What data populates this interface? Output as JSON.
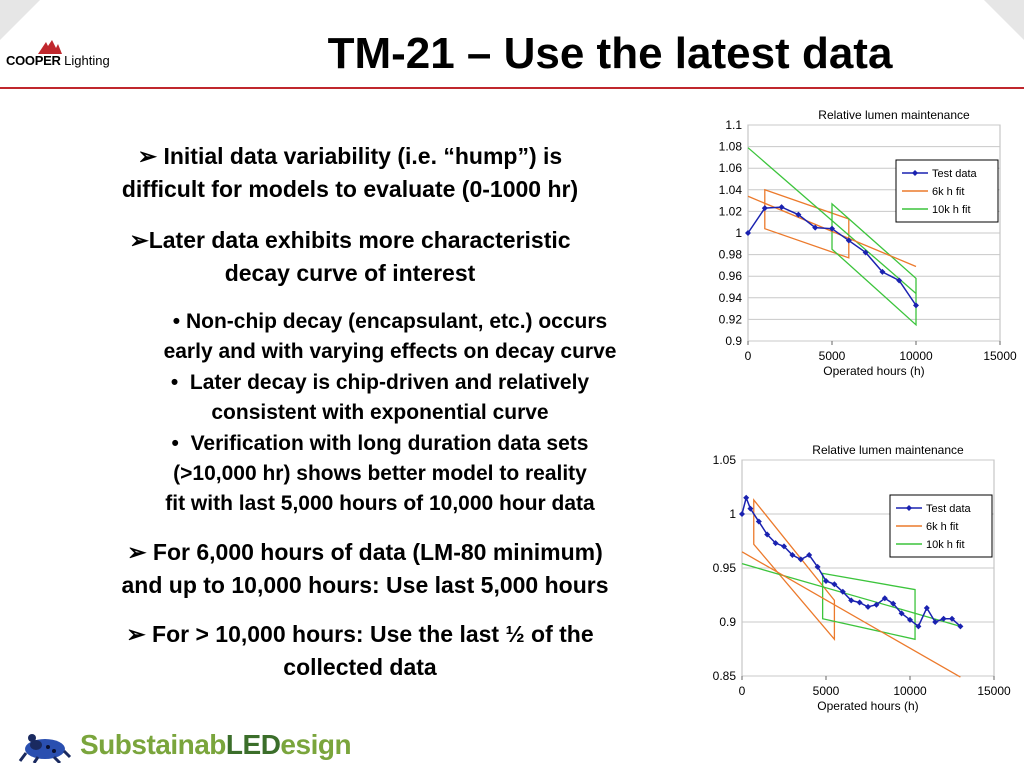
{
  "header": {
    "logo_brand": "COOPER",
    "logo_product": "Lighting",
    "title": "TM-21 – Use the latest data"
  },
  "bullets": [
    {
      "marker": "➢",
      "lines": [
        "Initial data variability (i.e. “hump”) is",
        "difficult for models to evaluate (0-1000 hr)"
      ]
    },
    {
      "marker": "➢",
      "lines": [
        "Later data exhibits more characteristic",
        "decay curve of interest"
      ]
    },
    {
      "marker": "•",
      "lines": [
        "Non-chip decay (encapsulant, etc.) occurs",
        "early and with varying effects on decay curve"
      ]
    },
    {
      "marker": "•",
      "lines": [
        "Later decay is chip-driven and relatively",
        "consistent with exponential curve"
      ]
    },
    {
      "marker": "•",
      "lines": [
        "Verification with long duration data sets",
        "(>10,000 hr) shows better model to reality",
        "fit with last 5,000 hours of 10,000 hour data"
      ]
    },
    {
      "marker": "➢",
      "lines": [
        "For 6,000 hours of data (LM-80 minimum)",
        "and up to 10,000 hours: Use last 5,000 hours"
      ]
    },
    {
      "marker": "➢",
      "lines": [
        "For > 10,000 hours: Use the last ½ of the",
        "collected data"
      ]
    }
  ],
  "footer": {
    "brand_a": "Substainab",
    "brand_b": "LED",
    "brand_c": "esign"
  },
  "colors": {
    "test_data": "#1a22b0",
    "fit_6k": "#ec7a2c",
    "fit_10k": "#3cc43c",
    "accent_rule": "#c0272d",
    "brand_green": "#7aa53c"
  },
  "chart_data": [
    {
      "type": "line",
      "title": "Relative lumen maintenance",
      "xlabel": "Operated hours (h)",
      "ylabel": "",
      "xlim": [
        0,
        15000
      ],
      "ylim": [
        0.9,
        1.1
      ],
      "xticks": [
        "0",
        "5000",
        "10000",
        "15000"
      ],
      "yticks": [
        "0.9",
        "0.92",
        "0.94",
        "0.96",
        "0.98",
        "1",
        "1.02",
        "1.04",
        "1.06",
        "1.08",
        "1.1"
      ],
      "legend": "top-right",
      "series": [
        {
          "name": "Test data",
          "x": [
            0,
            1000,
            2000,
            3000,
            4000,
            5000,
            6000,
            7000,
            8000,
            9000,
            10000
          ],
          "y": [
            1.0,
            1.023,
            1.024,
            1.017,
            1.005,
            1.004,
            0.993,
            0.982,
            0.964,
            0.956,
            0.933
          ]
        },
        {
          "name": "6k h fit",
          "x": [
            0,
            10000
          ],
          "y": [
            1.034,
            0.969
          ]
        },
        {
          "name": "10k h fit",
          "x": [
            0,
            10000
          ],
          "y": [
            1.079,
            0.944
          ]
        }
      ],
      "fit_windows": [
        {
          "name": "6k h fit",
          "x": [
            1000,
            6000
          ],
          "y_top": [
            1.04,
            1.013
          ],
          "y_bot": [
            1.004,
            0.977
          ]
        },
        {
          "name": "10k h fit",
          "x": [
            5000,
            10000
          ],
          "y_top": [
            1.027,
            0.958
          ],
          "y_bot": [
            0.985,
            0.915
          ]
        }
      ]
    },
    {
      "type": "line",
      "title": "Relative lumen maintenance",
      "xlabel": "Operated hours (h)",
      "ylabel": "",
      "xlim": [
        0,
        15000
      ],
      "ylim": [
        0.85,
        1.05
      ],
      "xticks": [
        "0",
        "5000",
        "10000",
        "15000"
      ],
      "yticks": [
        "0.85",
        "0.9",
        "0.95",
        "1",
        "1.05"
      ],
      "legend": "top-right",
      "series": [
        {
          "name": "Test data",
          "x": [
            0,
            250,
            500,
            1000,
            1500,
            2000,
            2500,
            3000,
            3500,
            4000,
            4500,
            5000,
            5500,
            6000,
            6500,
            7000,
            7500,
            8000,
            8500,
            9000,
            9500,
            10000,
            10500,
            11000,
            11500,
            12000,
            12500,
            13000
          ],
          "y": [
            1.0,
            1.015,
            1.005,
            0.993,
            0.981,
            0.973,
            0.97,
            0.962,
            0.958,
            0.962,
            0.951,
            0.938,
            0.935,
            0.928,
            0.92,
            0.918,
            0.914,
            0.916,
            0.922,
            0.917,
            0.908,
            0.902,
            0.896,
            0.913,
            0.9,
            0.903,
            0.903,
            0.896
          ]
        },
        {
          "name": "6k h fit",
          "x": [
            0,
            13000
          ],
          "y": [
            0.965,
            0.849
          ]
        },
        {
          "name": "10k h fit",
          "x": [
            0,
            13000
          ],
          "y": [
            0.954,
            0.896
          ]
        }
      ],
      "fit_windows": [
        {
          "name": "6k h fit",
          "x": [
            700,
            5500
          ],
          "y_top": [
            1.013,
            0.92
          ],
          "y_bot": [
            0.972,
            0.884
          ]
        },
        {
          "name": "10k h fit",
          "x": [
            4800,
            10300
          ],
          "y_top": [
            0.945,
            0.93
          ],
          "y_bot": [
            0.903,
            0.884
          ]
        }
      ]
    }
  ]
}
